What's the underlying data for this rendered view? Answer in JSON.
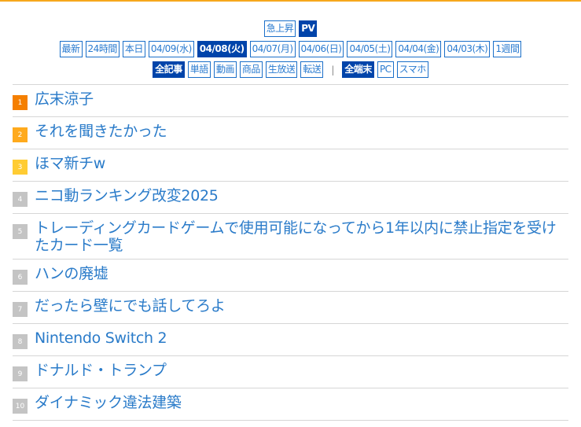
{
  "mode": [
    {
      "label": "急上昇",
      "active": false
    },
    {
      "label": "PV",
      "active": true
    }
  ],
  "periods": [
    {
      "label": "最新",
      "active": false
    },
    {
      "label": "24時間",
      "active": false
    },
    {
      "label": "本日",
      "active": false
    },
    {
      "label": "04/09(水)",
      "active": false
    },
    {
      "label": "04/08(火)",
      "active": true
    },
    {
      "label": "04/07(月)",
      "active": false
    },
    {
      "label": "04/06(日)",
      "active": false
    },
    {
      "label": "04/05(土)",
      "active": false
    },
    {
      "label": "04/04(金)",
      "active": false
    },
    {
      "label": "04/03(木)",
      "active": false
    },
    {
      "label": "1週間",
      "active": false
    }
  ],
  "categories": [
    {
      "label": "全記事",
      "active": true
    },
    {
      "label": "単語",
      "active": false
    },
    {
      "label": "動画",
      "active": false
    },
    {
      "label": "商品",
      "active": false
    },
    {
      "label": "生放送",
      "active": false
    },
    {
      "label": "転送",
      "active": false
    }
  ],
  "separator": "|",
  "devices": [
    {
      "label": "全端末",
      "active": true
    },
    {
      "label": "PC",
      "active": false
    },
    {
      "label": "スマホ",
      "active": false
    }
  ],
  "ranking": [
    {
      "rank": "1",
      "title": "広末涼子",
      "color": "#f57f00"
    },
    {
      "rank": "2",
      "title": "それを聞きたかった",
      "color": "#ffaa1d"
    },
    {
      "rank": "3",
      "title": "ほマ新チw",
      "color": "#ffcc33"
    },
    {
      "rank": "4",
      "title": "ニコ動ランキング改変2025",
      "color": "#c4c4c4"
    },
    {
      "rank": "5",
      "title": "トレーディングカードゲームで使用可能になってから1年以内に禁止指定を受けたカード一覧",
      "color": "#c4c4c4"
    },
    {
      "rank": "6",
      "title": "ハンの廃墟",
      "color": "#c4c4c4"
    },
    {
      "rank": "7",
      "title": "だったら壁にでも話してろよ",
      "color": "#c4c4c4"
    },
    {
      "rank": "8",
      "title": "Nintendo Switch 2",
      "color": "#c4c4c4"
    },
    {
      "rank": "9",
      "title": "ドナルド・トランプ",
      "color": "#c4c4c4"
    },
    {
      "rank": "10",
      "title": "ダイナミック違法建築",
      "color": "#c4c4c4"
    }
  ]
}
